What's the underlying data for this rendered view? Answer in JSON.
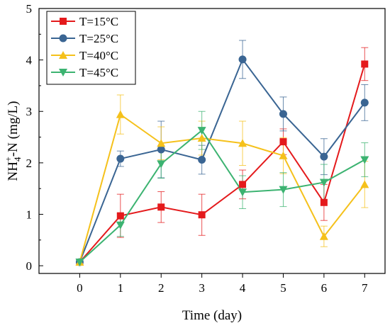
{
  "chart_data": {
    "type": "line",
    "title": "",
    "xlabel": "Time (day)",
    "ylabel": {
      "prefix": "NH",
      "sub": "4",
      "sup": "+",
      "suffix": "-N (mg/L)"
    },
    "x": [
      0,
      1,
      2,
      3,
      4,
      5,
      6,
      7
    ],
    "xlim": [
      -1,
      7.5
    ],
    "ylim": [
      -0.15,
      5
    ],
    "xticks": [
      "0",
      "1",
      "2",
      "3",
      "4",
      "5",
      "6",
      "7"
    ],
    "yticks": [
      "0",
      "1",
      "2",
      "3",
      "4",
      "5"
    ],
    "grid": false,
    "legend_position": "top-left",
    "series": [
      {
        "name": "T=15°C",
        "color": "#e41a1c",
        "marker": "square",
        "values": [
          0.07,
          0.97,
          1.14,
          0.99,
          1.58,
          2.41,
          1.23,
          3.92
        ],
        "errors": [
          0.03,
          0.42,
          0.3,
          0.4,
          0.28,
          0.25,
          0.35,
          0.32
        ]
      },
      {
        "name": "T=25°C",
        "color": "#3a6593",
        "marker": "circle",
        "values": [
          0.07,
          2.08,
          2.26,
          2.06,
          4.01,
          2.95,
          2.12,
          3.17
        ],
        "errors": [
          0.03,
          0.15,
          0.55,
          0.28,
          0.37,
          0.33,
          0.35,
          0.35
        ]
      },
      {
        "name": "T=40°C",
        "color": "#f5c11b",
        "marker": "triangle-up",
        "values": [
          0.07,
          2.94,
          2.38,
          2.48,
          2.38,
          2.14,
          0.57,
          1.58
        ],
        "errors": [
          0.03,
          0.38,
          0.32,
          0.33,
          0.43,
          0.35,
          0.2,
          0.45
        ]
      },
      {
        "name": "T=45°C",
        "color": "#3cb371",
        "marker": "triangle-down",
        "values": [
          0.07,
          0.79,
          1.98,
          2.63,
          1.43,
          1.48,
          1.62,
          2.06
        ],
        "errors": [
          0.03,
          0.22,
          0.28,
          0.37,
          0.32,
          0.33,
          0.35,
          0.33
        ]
      }
    ]
  }
}
